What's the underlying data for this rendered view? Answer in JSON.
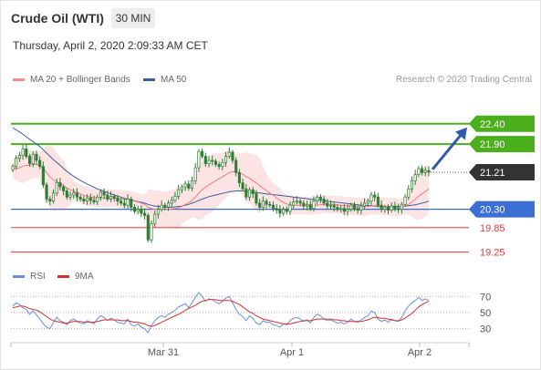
{
  "header": {
    "instrument": "Crude Oil (WTI)",
    "timeframe": "30 MIN",
    "datetime": "Thursday, April 2, 2020 2:09:33 AM CET"
  },
  "legend": {
    "ma20_label": "MA 20 + Bollinger Bands",
    "ma50_label": "MA 50",
    "credit": "Research © 2020 Trading Central"
  },
  "rsi_legend": {
    "rsi_label": "RSI",
    "ma_label": "9MA"
  },
  "colors": {
    "candle": "#2e7d32",
    "ma20": "#f07a7a",
    "bollinger_fill": "#fde4e4",
    "ma50": "#3a5f9e",
    "resistance": "#4caf1c",
    "pivot": "#3b6fd4",
    "support": "#e53935",
    "last_price": "#333333",
    "rsi": "#6a8fd8",
    "rsi_ma": "#d32f2f"
  },
  "chart_data": [
    {
      "type": "candlestick",
      "y_range": [
        18.95,
        23.2
      ],
      "x_labels": [
        "Mar 31",
        "Apr 1",
        "Apr 2"
      ],
      "price_levels": [
        {
          "value": 22.4,
          "label": "22.40",
          "kind": "resistance"
        },
        {
          "value": 21.9,
          "label": "21.90",
          "kind": "resistance"
        },
        {
          "value": 21.21,
          "label": "21.21",
          "kind": "last"
        },
        {
          "value": 20.3,
          "label": "20.30",
          "kind": "pivot"
        },
        {
          "value": 19.85,
          "label": "19.85",
          "kind": "support"
        },
        {
          "value": 19.25,
          "label": "19.25",
          "kind": "support"
        }
      ],
      "forecast_arrow": {
        "from": 21.21,
        "to": 22.4
      },
      "close": [
        21.35,
        21.55,
        21.62,
        21.78,
        21.6,
        21.42,
        21.65,
        21.5,
        21.35,
        20.9,
        20.55,
        20.5,
        20.7,
        20.95,
        20.85,
        20.75,
        20.6,
        20.65,
        20.7,
        20.6,
        20.55,
        20.5,
        20.58,
        20.52,
        20.48,
        20.6,
        20.72,
        20.65,
        20.55,
        20.62,
        20.58,
        20.5,
        20.45,
        20.4,
        20.55,
        20.35,
        20.25,
        20.3,
        20.2,
        20.15,
        19.55,
        19.95,
        20.18,
        20.3,
        20.4,
        20.35,
        20.45,
        20.52,
        20.62,
        20.78,
        20.85,
        20.92,
        20.82,
        21.0,
        21.32,
        21.72,
        21.6,
        21.42,
        21.5,
        21.48,
        21.4,
        21.35,
        21.45,
        21.6,
        21.7,
        21.5,
        21.2,
        20.95,
        20.8,
        20.6,
        20.78,
        20.68,
        20.45,
        20.35,
        20.5,
        20.42,
        20.4,
        20.32,
        20.28,
        20.2,
        20.3,
        20.25,
        20.4,
        20.48,
        20.5,
        20.45,
        20.38,
        20.42,
        20.32,
        20.5,
        20.6,
        20.55,
        20.45,
        20.38,
        20.4,
        20.35,
        20.3,
        20.32,
        20.25,
        20.3,
        20.4,
        20.32,
        20.28,
        20.38,
        20.45,
        20.5,
        20.65,
        20.6,
        20.4,
        20.3,
        20.35,
        20.28,
        20.38,
        20.32,
        20.3,
        20.42,
        20.6,
        20.8,
        21.0,
        21.15,
        21.3,
        21.2,
        21.25,
        21.21
      ],
      "ma20": [
        21.3,
        21.3,
        21.32,
        21.36,
        21.38,
        21.38,
        21.4,
        21.4,
        21.38,
        21.3,
        21.2,
        21.1,
        21.02,
        20.98,
        20.94,
        20.88,
        20.82,
        20.78,
        20.75,
        20.72,
        20.68,
        20.64,
        20.62,
        20.6,
        20.58,
        20.58,
        20.58,
        20.58,
        20.57,
        20.57,
        20.57,
        20.56,
        20.55,
        20.54,
        20.54,
        20.52,
        20.5,
        20.48,
        20.45,
        20.42,
        20.35,
        20.32,
        20.3,
        20.3,
        20.3,
        20.3,
        20.3,
        20.31,
        20.32,
        20.34,
        20.37,
        20.42,
        20.46,
        20.52,
        20.6,
        20.7,
        20.78,
        20.85,
        20.9,
        20.95,
        21.0,
        21.05,
        21.1,
        21.15,
        21.2,
        21.22,
        21.22,
        21.2,
        21.16,
        21.1,
        21.06,
        21.0,
        20.95,
        20.88,
        20.82,
        20.76,
        20.7,
        20.64,
        20.58,
        20.52,
        20.47,
        20.43,
        20.41,
        20.4,
        20.4,
        20.4,
        20.39,
        20.39,
        20.38,
        20.39,
        20.4,
        20.41,
        20.42,
        20.42,
        20.42,
        20.42,
        20.41,
        20.4,
        20.39,
        20.38,
        20.38,
        20.37,
        20.36,
        20.36,
        20.36,
        20.37,
        20.38,
        20.39,
        20.39,
        20.38,
        20.37,
        20.36,
        20.36,
        20.35,
        20.35,
        20.36,
        20.38,
        20.42,
        20.48,
        20.54,
        20.62,
        20.68,
        20.74,
        20.8
      ],
      "ma50": [
        22.3,
        22.25,
        22.2,
        22.14,
        22.08,
        22.02,
        21.96,
        21.9,
        21.84,
        21.76,
        21.68,
        21.6,
        21.52,
        21.45,
        21.38,
        21.3,
        21.23,
        21.17,
        21.11,
        21.06,
        21.01,
        20.96,
        20.92,
        20.88,
        20.84,
        20.8,
        20.77,
        20.74,
        20.71,
        20.68,
        20.65,
        20.62,
        20.6,
        20.57,
        20.55,
        20.53,
        20.51,
        20.49,
        20.47,
        20.45,
        20.42,
        20.4,
        20.38,
        20.37,
        20.36,
        20.35,
        20.35,
        20.35,
        20.36,
        20.37,
        20.38,
        20.4,
        20.42,
        20.45,
        20.48,
        20.52,
        20.55,
        20.58,
        20.61,
        20.63,
        20.65,
        20.67,
        20.69,
        20.71,
        20.73,
        20.74,
        20.75,
        20.75,
        20.75,
        20.74,
        20.73,
        20.72,
        20.71,
        20.7,
        20.69,
        20.68,
        20.67,
        20.66,
        20.65,
        20.64,
        20.63,
        20.62,
        20.61,
        20.6,
        20.59,
        20.58,
        20.57,
        20.56,
        20.55,
        20.54,
        20.53,
        20.52,
        20.51,
        20.5,
        20.49,
        20.48,
        20.47,
        20.46,
        20.45,
        20.44,
        20.43,
        20.42,
        20.41,
        20.4,
        20.4,
        20.39,
        20.39,
        20.38,
        20.38,
        20.37,
        20.37,
        20.37,
        20.37,
        20.37,
        20.37,
        20.37,
        20.38,
        20.39,
        20.4,
        20.41,
        20.43,
        20.45,
        20.47,
        20.5
      ]
    },
    {
      "type": "line",
      "y_ticks": [
        70,
        50,
        30
      ],
      "y_range": [
        15,
        85
      ],
      "series": [
        {
          "name": "RSI",
          "values": [
            58,
            62,
            60,
            56,
            54,
            48,
            52,
            47,
            42,
            36,
            32,
            30,
            38,
            44,
            40,
            38,
            35,
            40,
            42,
            39,
            37,
            36,
            40,
            38,
            36,
            42,
            46,
            44,
            40,
            43,
            41,
            38,
            37,
            36,
            42,
            35,
            33,
            36,
            32,
            30,
            25,
            34,
            40,
            44,
            46,
            44,
            48,
            50,
            53,
            57,
            59,
            61,
            56,
            62,
            69,
            75,
            70,
            64,
            67,
            66,
            63,
            61,
            64,
            68,
            70,
            62,
            54,
            48,
            45,
            40,
            46,
            43,
            37,
            35,
            40,
            38,
            38,
            35,
            34,
            32,
            36,
            35,
            40,
            43,
            44,
            42,
            39,
            41,
            37,
            44,
            48,
            46,
            42,
            40,
            41,
            39,
            37,
            38,
            36,
            38,
            42,
            39,
            38,
            41,
            44,
            46,
            52,
            50,
            42,
            39,
            41,
            38,
            42,
            40,
            39,
            44,
            52,
            58,
            62,
            65,
            69,
            65,
            67,
            65
          ]
        },
        {
          "name": "9MA",
          "values": [
            56,
            57,
            58,
            58,
            57,
            55,
            54,
            53,
            51,
            48,
            45,
            42,
            40,
            39,
            38,
            37,
            37,
            38,
            39,
            39,
            39,
            38,
            38,
            38,
            38,
            39,
            40,
            41,
            41,
            41,
            41,
            41,
            40,
            40,
            40,
            39,
            38,
            38,
            37,
            36,
            34,
            33,
            34,
            36,
            38,
            40,
            42,
            44,
            46,
            48,
            50,
            53,
            55,
            57,
            59,
            62,
            64,
            65,
            66,
            66,
            66,
            65,
            65,
            65,
            65,
            64,
            62,
            60,
            57,
            54,
            51,
            49,
            46,
            44,
            42,
            41,
            40,
            39,
            38,
            37,
            36,
            36,
            36,
            37,
            38,
            39,
            40,
            40,
            40,
            41,
            42,
            42,
            42,
            42,
            42,
            41,
            41,
            40,
            40,
            39,
            39,
            39,
            39,
            39,
            40,
            41,
            43,
            44,
            44,
            43,
            43,
            42,
            41,
            40,
            40,
            41,
            43,
            46,
            49,
            53,
            57,
            60,
            62,
            64
          ]
        }
      ]
    }
  ]
}
